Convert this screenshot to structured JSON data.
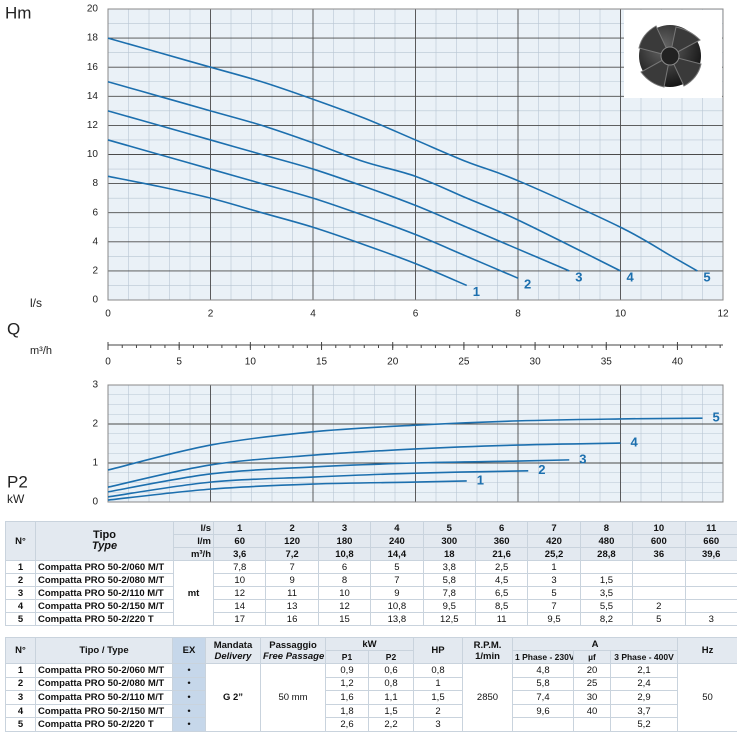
{
  "chart_data": [
    {
      "type": "line",
      "ylabel": "Hm",
      "xlabel": "l/s",
      "flow_label": "Q",
      "x2label": "m³/h",
      "xlim": [
        0,
        12
      ],
      "xticks": [
        0,
        2,
        4,
        6,
        8,
        10,
        12
      ],
      "show_xtick_labels": true,
      "ylim": [
        0,
        20
      ],
      "yticks": [
        0,
        2,
        4,
        6,
        8,
        10,
        12,
        14,
        16,
        18,
        20
      ],
      "grid": true,
      "x2lim": [
        0,
        43.2
      ],
      "x2ticks": [
        0,
        5,
        10,
        15,
        20,
        25,
        30,
        35,
        40
      ],
      "series": [
        {
          "name": "1",
          "color": "#1c6fae",
          "x": [
            0,
            1,
            2,
            3,
            4,
            5,
            6,
            7
          ],
          "values": [
            8.5,
            7.8,
            7,
            6,
            5,
            3.8,
            2.5,
            1
          ]
        },
        {
          "name": "2",
          "color": "#1c6fae",
          "x": [
            0,
            1,
            2,
            3,
            4,
            5,
            6,
            7,
            8
          ],
          "values": [
            11,
            10,
            9,
            8,
            7,
            5.8,
            4.5,
            3,
            1.5
          ]
        },
        {
          "name": "3",
          "color": "#1c6fae",
          "x": [
            0,
            1,
            2,
            3,
            4,
            5,
            6,
            7,
            8,
            9
          ],
          "values": [
            13,
            12,
            11,
            10,
            9,
            7.8,
            6.5,
            5,
            3.5,
            2
          ]
        },
        {
          "name": "4",
          "color": "#1c6fae",
          "x": [
            0,
            1,
            2,
            3,
            4,
            5,
            6,
            7,
            8,
            10
          ],
          "values": [
            15,
            14,
            13,
            12,
            10.8,
            9.5,
            8.5,
            7,
            5.5,
            2
          ]
        },
        {
          "name": "5",
          "color": "#1c6fae",
          "x": [
            0,
            1,
            2,
            3,
            4,
            5,
            6,
            7,
            8,
            10,
            11,
            11.5
          ],
          "values": [
            18,
            17,
            16,
            15,
            13.8,
            12.5,
            11,
            9.5,
            8.2,
            5,
            3,
            2
          ]
        }
      ]
    },
    {
      "type": "line",
      "ylabel": "P2",
      "yunit": "kW",
      "xlim": [
        0,
        12
      ],
      "xticks": [
        0,
        2,
        4,
        6,
        8,
        10,
        12
      ],
      "show_xtick_labels": false,
      "ylim": [
        0,
        3
      ],
      "yticks": [
        0,
        1,
        2,
        3
      ],
      "grid": true,
      "series": [
        {
          "name": "1",
          "color": "#1c6fae",
          "x": [
            0,
            2,
            4,
            6,
            7
          ],
          "values": [
            0.05,
            0.33,
            0.46,
            0.51,
            0.54
          ]
        },
        {
          "name": "2",
          "color": "#1c6fae",
          "x": [
            0,
            2,
            4,
            6,
            8.2
          ],
          "values": [
            0.13,
            0.51,
            0.64,
            0.74,
            0.8
          ]
        },
        {
          "name": "3",
          "color": "#1c6fae",
          "x": [
            0,
            2,
            4,
            6,
            8,
            9
          ],
          "values": [
            0.26,
            0.72,
            0.9,
            1,
            1.05,
            1.08
          ]
        },
        {
          "name": "4",
          "color": "#1c6fae",
          "x": [
            0,
            2,
            4,
            6,
            8,
            10
          ],
          "values": [
            0.38,
            0.95,
            1.2,
            1.36,
            1.46,
            1.51
          ]
        },
        {
          "name": "5",
          "color": "#1c6fae",
          "x": [
            0,
            2,
            4,
            6,
            8,
            10,
            11.6
          ],
          "values": [
            0.82,
            1.46,
            1.8,
            1.97,
            2.08,
            2.13,
            2.15
          ]
        }
      ]
    }
  ],
  "table1": {
    "no": "N°",
    "type": "Tipo",
    "type_en": "Type",
    "unit": "mt",
    "scales": [
      {
        "unit": "l/s",
        "values": [
          "1",
          "2",
          "3",
          "4",
          "5",
          "6",
          "7",
          "8",
          "10",
          "11"
        ]
      },
      {
        "unit": "l/m",
        "values": [
          "60",
          "120",
          "180",
          "240",
          "300",
          "360",
          "420",
          "480",
          "600",
          "660"
        ]
      },
      {
        "unit": "m³/h",
        "values": [
          "3,6",
          "7,2",
          "10,8",
          "14,4",
          "18",
          "21,6",
          "25,2",
          "28,8",
          "36",
          "39,6"
        ]
      }
    ],
    "rows": [
      {
        "no": "1",
        "name": "Compatta PRO 50-2/060 M/T",
        "values": [
          "7,8",
          "7",
          "6",
          "5",
          "3,8",
          "2,5",
          "1",
          null,
          null,
          null
        ]
      },
      {
        "no": "2",
        "name": "Compatta PRO 50-2/080 M/T",
        "values": [
          "10",
          "9",
          "8",
          "7",
          "5,8",
          "4,5",
          "3",
          "1,5",
          null,
          null
        ]
      },
      {
        "no": "3",
        "name": "Compatta PRO 50-2/110 M/T",
        "values": [
          "12",
          "11",
          "10",
          "9",
          "7,8",
          "6,5",
          "5",
          "3,5",
          null,
          null
        ]
      },
      {
        "no": "4",
        "name": "Compatta PRO 50-2/150 M/T",
        "values": [
          "14",
          "13",
          "12",
          "10,8",
          "9,5",
          "8,5",
          "7",
          "5,5",
          "2",
          null
        ]
      },
      {
        "no": "5",
        "name": "Compatta PRO 50-2/220 T",
        "values": [
          "17",
          "16",
          "15",
          "13,8",
          "12,5",
          "11",
          "9,5",
          "8,2",
          "5",
          "3"
        ]
      }
    ]
  },
  "table2": {
    "header": {
      "no": "N°",
      "type": "Tipo / Type",
      "ex": "EX",
      "delivery": "Mandata",
      "delivery_en": "Delivery",
      "passage": "Passaggio",
      "passage_en": "Free Passage",
      "kw": "kW",
      "p1": "P1",
      "p2": "P2",
      "hp": "HP",
      "rpm": "R.P.M.",
      "rpm_unit": "1/min",
      "a": "A",
      "phase1": "1 Phase - 230V",
      "uf": "µf",
      "phase3": "3 Phase - 400V",
      "hz": "Hz"
    },
    "delivery": "G 2”",
    "passage": "50 mm",
    "rpm": "2850",
    "hz": "50",
    "rows": [
      {
        "no": "1",
        "name": "Compatta PRO 50-2/060 M/T",
        "ex": "•",
        "values": [
          "0,9",
          "0,6",
          "0,8",
          "4,8",
          "20",
          "2,1"
        ]
      },
      {
        "no": "2",
        "name": "Compatta PRO 50-2/080 M/T",
        "ex": "•",
        "values": [
          "1,2",
          "0,8",
          "1",
          "5,8",
          "25",
          "2,4"
        ]
      },
      {
        "no": "3",
        "name": "Compatta PRO 50-2/110 M/T",
        "ex": "•",
        "values": [
          "1,6",
          "1,1",
          "1,5",
          "7,4",
          "30",
          "2,9"
        ]
      },
      {
        "no": "4",
        "name": "Compatta PRO 50-2/150 M/T",
        "ex": "•",
        "values": [
          "1,8",
          "1,5",
          "2",
          "9,6",
          "40",
          "3,7"
        ]
      },
      {
        "no": "5",
        "name": "Compatta PRO 50-2/220 T",
        "ex": "•",
        "values": [
          "2,6",
          "2,2",
          "3",
          null,
          null,
          "5,2"
        ]
      }
    ]
  }
}
